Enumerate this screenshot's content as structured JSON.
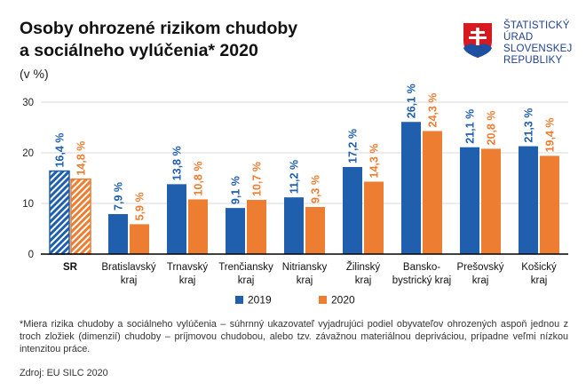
{
  "title_line1": "Osoby ohrozené rizikom chudoby",
  "title_line2": "a sociálneho vylúčenia* 2020",
  "unit": "(v %)",
  "logo": {
    "lines": [
      "ŠTATISTICKÝ",
      "ÚRAD",
      "SLOVENSKEJ",
      "REPUBLIKY"
    ],
    "emblem": "slovak-coat-of-arms-icon"
  },
  "colors": {
    "s2019": "#1f5fae",
    "s2020": "#ed7d31",
    "axis": "#000000",
    "grid": "#d9d9d9"
  },
  "chart_data": {
    "type": "bar",
    "categories": [
      [
        "SR"
      ],
      [
        "Bratislavský",
        "kraj"
      ],
      [
        "Trnavský",
        "kraj"
      ],
      [
        "Trenčiansky",
        "kraj"
      ],
      [
        "Nitriansky",
        "kraj"
      ],
      [
        "Žilinský",
        "kraj"
      ],
      [
        "Bansko-",
        "bystrický kraj"
      ],
      [
        "Prešovský",
        "kraj"
      ],
      [
        "Košický",
        "kraj"
      ]
    ],
    "series": [
      {
        "name": "2019",
        "values": [
          16.4,
          7.9,
          13.8,
          9.1,
          11.2,
          17.2,
          26.1,
          21.1,
          21.3
        ],
        "labels": [
          "16,4 %",
          "7,9 %",
          "13,8 %",
          "9,1 %",
          "11,2 %",
          "17,2 %",
          "26,1 %",
          "21,1 %",
          "21,3 %"
        ]
      },
      {
        "name": "2020",
        "values": [
          14.8,
          5.9,
          10.8,
          10.7,
          9.3,
          14.3,
          24.3,
          20.8,
          19.4
        ],
        "labels": [
          "14,8 %",
          "5,9 %",
          "10,8 %",
          "10,7 %",
          "9,3 %",
          "14,3 %",
          "24,3 %",
          "20,8 %",
          "19,4 %"
        ]
      }
    ],
    "yticks": [
      "0",
      "10",
      "20",
      "30"
    ],
    "ylim": [
      0,
      30
    ],
    "grid": true,
    "legend_position": "bottom-center",
    "highlighted_category": "SR"
  },
  "footnote": "*Miera rizika chudoby a sociálneho vylúčenia – súhrnný ukazovateľ vyjadrujúci podiel obyvateľov ohrozených aspoň jednou z troch zložiek (dimenzií) chudoby – príjmovou chudobou, alebo tzv. závažnou materiálnou depriváciou, prípadne veľmi nízkou intenzitou práce.",
  "source": "Zdroj: EU SILC 2020"
}
